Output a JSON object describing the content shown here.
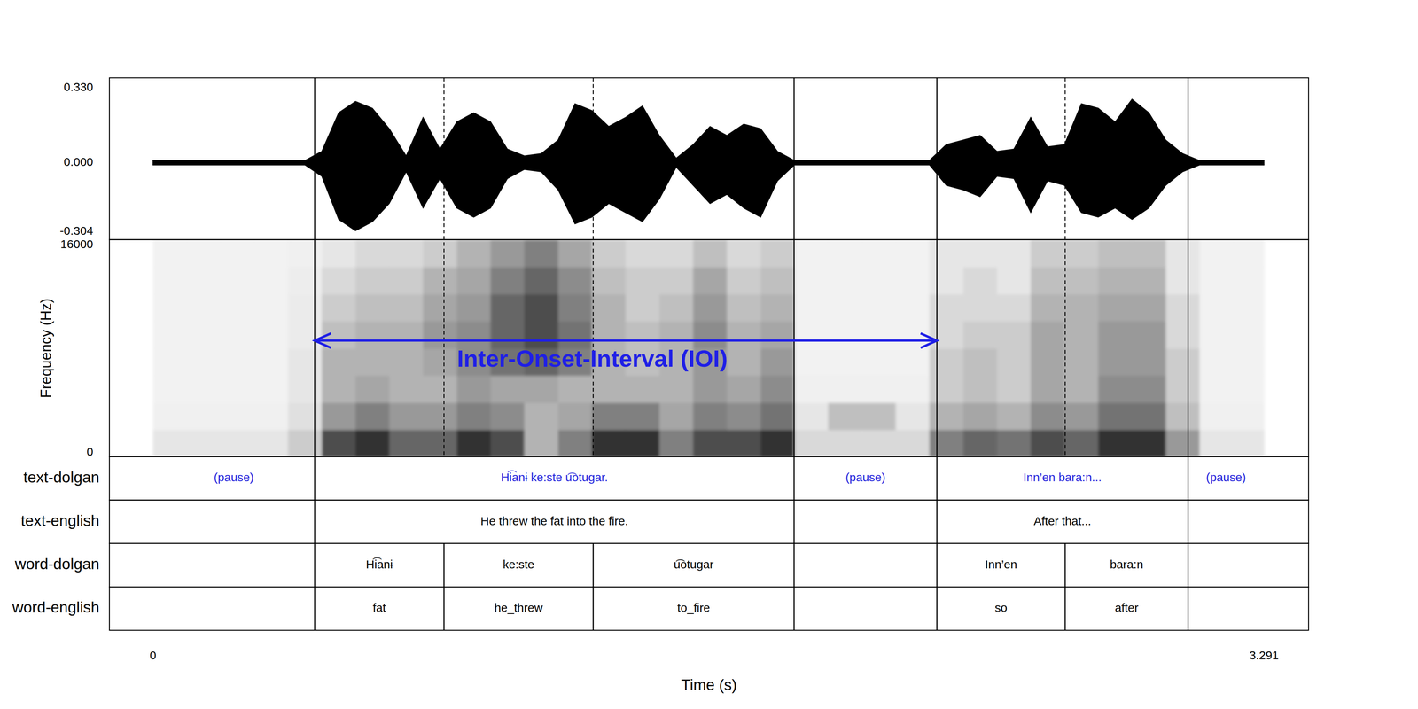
{
  "chart_data": {
    "type": "waveform_spectrogram",
    "x_label": "Time (s)",
    "xlim": [
      -0.129,
      3.423
    ],
    "xticks": [
      0,
      3.291
    ],
    "waveform": {
      "ylim": [
        -0.339,
        0.374
      ],
      "yticks": [
        {
          "value": 0.33,
          "label": "0.330"
        },
        {
          "value": 0,
          "label": "0.000"
        },
        -0.304
      ],
      "color": "#000000",
      "time": [
        0,
        0.05,
        0.1,
        0.15,
        0.2,
        0.25,
        0.3,
        0.35,
        0.4,
        0.45,
        0.5,
        0.55,
        0.6,
        0.65,
        0.7,
        0.75,
        0.8,
        0.85,
        0.9,
        0.95,
        1.0,
        1.05,
        1.1,
        1.15,
        1.2,
        1.25,
        1.3,
        1.35,
        1.4,
        1.45,
        1.5,
        1.55,
        1.6,
        1.65,
        1.7,
        1.75,
        1.8,
        1.85,
        1.9,
        1.95,
        2.0,
        2.05,
        2.1,
        2.15,
        2.2,
        2.25,
        2.3,
        2.35,
        2.4,
        2.45,
        2.5,
        2.55,
        2.6,
        2.65,
        2.7,
        2.75,
        2.8,
        2.85,
        2.9,
        2.95,
        3.0,
        3.05,
        3.1,
        3.15,
        3.2,
        3.25,
        3.291
      ],
      "upper": [
        0.01,
        0.01,
        0.01,
        0.01,
        0.01,
        0.01,
        0.01,
        0.01,
        0.01,
        0.01,
        0.05,
        0.22,
        0.27,
        0.24,
        0.15,
        0.03,
        0.2,
        0.06,
        0.18,
        0.22,
        0.18,
        0.06,
        0.03,
        0.04,
        0.1,
        0.26,
        0.23,
        0.16,
        0.2,
        0.25,
        0.12,
        0.02,
        0.08,
        0.16,
        0.12,
        0.17,
        0.15,
        0.05,
        0.01,
        0.01,
        0.01,
        0.01,
        0.01,
        0.01,
        0.01,
        0.01,
        0.01,
        0.08,
        0.1,
        0.12,
        0.05,
        0.06,
        0.2,
        0.07,
        0.08,
        0.26,
        0.24,
        0.18,
        0.28,
        0.22,
        0.1,
        0.04,
        0.01,
        0.01,
        0.01,
        0.01,
        0.01
      ],
      "lower": [
        -0.01,
        -0.01,
        -0.01,
        -0.01,
        -0.01,
        -0.01,
        -0.01,
        -0.01,
        -0.01,
        -0.01,
        -0.06,
        -0.25,
        -0.3,
        -0.26,
        -0.18,
        -0.04,
        -0.2,
        -0.07,
        -0.2,
        -0.24,
        -0.2,
        -0.07,
        -0.03,
        -0.04,
        -0.12,
        -0.27,
        -0.24,
        -0.18,
        -0.22,
        -0.26,
        -0.16,
        -0.02,
        -0.1,
        -0.18,
        -0.14,
        -0.2,
        -0.24,
        -0.08,
        -0.01,
        -0.01,
        -0.01,
        -0.01,
        -0.01,
        -0.01,
        -0.01,
        -0.01,
        -0.01,
        -0.1,
        -0.12,
        -0.15,
        -0.06,
        -0.07,
        -0.22,
        -0.08,
        -0.1,
        -0.22,
        -0.24,
        -0.2,
        -0.25,
        -0.2,
        -0.1,
        -0.04,
        -0.01,
        -0.01,
        -0.01,
        -0.01,
        -0.01
      ]
    },
    "spectrogram": {
      "y_label": "Frequency (Hz)",
      "ylim": [
        0,
        16000
      ],
      "yticks": [
        0,
        16000
      ],
      "time": [
        0,
        0.1,
        0.2,
        0.3,
        0.4,
        0.5,
        0.6,
        0.7,
        0.8,
        0.9,
        1.0,
        1.1,
        1.2,
        1.3,
        1.4,
        1.5,
        1.6,
        1.7,
        1.8,
        1.9,
        2.0,
        2.1,
        2.2,
        2.3,
        2.4,
        2.5,
        2.6,
        2.7,
        2.8,
        2.9,
        3.0,
        3.1,
        3.2,
        3.291
      ],
      "freq": [
        0,
        2000,
        4000,
        6000,
        8000,
        10000,
        12000,
        14000,
        16000
      ],
      "intensity": [
        [
          0.1,
          0.06,
          0.05,
          0.05,
          0.05,
          0.05,
          0.05,
          0.05
        ],
        [
          0.1,
          0.06,
          0.05,
          0.05,
          0.05,
          0.05,
          0.05,
          0.05
        ],
        [
          0.1,
          0.06,
          0.05,
          0.05,
          0.05,
          0.05,
          0.05,
          0.05
        ],
        [
          0.1,
          0.06,
          0.05,
          0.05,
          0.05,
          0.05,
          0.05,
          0.05
        ],
        [
          0.2,
          0.12,
          0.1,
          0.1,
          0.08,
          0.08,
          0.07,
          0.06
        ],
        [
          0.7,
          0.4,
          0.3,
          0.3,
          0.25,
          0.2,
          0.15,
          0.1
        ],
        [
          0.8,
          0.5,
          0.35,
          0.3,
          0.3,
          0.25,
          0.2,
          0.15
        ],
        [
          0.6,
          0.4,
          0.3,
          0.3,
          0.3,
          0.25,
          0.2,
          0.15
        ],
        [
          0.6,
          0.4,
          0.3,
          0.35,
          0.4,
          0.35,
          0.3,
          0.2
        ],
        [
          0.8,
          0.5,
          0.4,
          0.45,
          0.45,
          0.4,
          0.35,
          0.3
        ],
        [
          0.7,
          0.45,
          0.35,
          0.55,
          0.6,
          0.6,
          0.5,
          0.4
        ],
        [
          0.3,
          0.3,
          0.35,
          0.6,
          0.7,
          0.7,
          0.6,
          0.5
        ],
        [
          0.5,
          0.35,
          0.3,
          0.5,
          0.55,
          0.5,
          0.45,
          0.35
        ],
        [
          0.8,
          0.5,
          0.3,
          0.3,
          0.3,
          0.3,
          0.25,
          0.2
        ],
        [
          0.8,
          0.5,
          0.3,
          0.25,
          0.25,
          0.2,
          0.2,
          0.15
        ],
        [
          0.5,
          0.35,
          0.3,
          0.3,
          0.3,
          0.25,
          0.2,
          0.15
        ],
        [
          0.7,
          0.5,
          0.4,
          0.4,
          0.45,
          0.4,
          0.35,
          0.25
        ],
        [
          0.7,
          0.45,
          0.35,
          0.3,
          0.3,
          0.25,
          0.2,
          0.15
        ],
        [
          0.8,
          0.55,
          0.45,
          0.4,
          0.35,
          0.3,
          0.25,
          0.2
        ],
        [
          0.15,
          0.1,
          0.06,
          0.05,
          0.05,
          0.05,
          0.05,
          0.05
        ],
        [
          0.15,
          0.25,
          0.06,
          0.05,
          0.05,
          0.05,
          0.05,
          0.05
        ],
        [
          0.15,
          0.25,
          0.06,
          0.05,
          0.05,
          0.05,
          0.05,
          0.05
        ],
        [
          0.15,
          0.1,
          0.06,
          0.05,
          0.05,
          0.05,
          0.05,
          0.05
        ],
        [
          0.5,
          0.3,
          0.2,
          0.2,
          0.15,
          0.15,
          0.1,
          0.1
        ],
        [
          0.6,
          0.35,
          0.25,
          0.25,
          0.2,
          0.15,
          0.15,
          0.1
        ],
        [
          0.55,
          0.3,
          0.2,
          0.2,
          0.2,
          0.15,
          0.1,
          0.1
        ],
        [
          0.7,
          0.45,
          0.35,
          0.35,
          0.35,
          0.3,
          0.25,
          0.2
        ],
        [
          0.6,
          0.4,
          0.3,
          0.3,
          0.3,
          0.3,
          0.25,
          0.2
        ],
        [
          0.8,
          0.55,
          0.45,
          0.4,
          0.4,
          0.35,
          0.3,
          0.25
        ],
        [
          0.8,
          0.55,
          0.45,
          0.4,
          0.4,
          0.35,
          0.3,
          0.25
        ],
        [
          0.4,
          0.25,
          0.2,
          0.2,
          0.15,
          0.15,
          0.1,
          0.1
        ],
        [
          0.1,
          0.06,
          0.05,
          0.05,
          0.05,
          0.05,
          0.05,
          0.05
        ],
        [
          0.1,
          0.06,
          0.05,
          0.05,
          0.05,
          0.05,
          0.05,
          0.05
        ]
      ]
    },
    "tiers": [
      {
        "name": "text-dolgan",
        "color": "#2424dc",
        "intervals": [
          {
            "start": 0,
            "end": 0.479,
            "text": "(pause)"
          },
          {
            "start": 0.479,
            "end": 1.899,
            "text": "Hi͡anɨ ke:ste u͡otugar."
          },
          {
            "start": 1.899,
            "end": 2.322,
            "text": "(pause)"
          },
          {
            "start": 2.322,
            "end": 3.066,
            "text": "Inn’en bara:n..."
          },
          {
            "start": 3.066,
            "end": 3.291,
            "text": "(pause)"
          }
        ]
      },
      {
        "name": "text-english",
        "color": "#000000",
        "intervals": [
          {
            "start": 0.479,
            "end": 1.899,
            "text": "He threw the fat into the fire."
          },
          {
            "start": 2.322,
            "end": 3.066,
            "text": "After that..."
          }
        ]
      },
      {
        "name": "word-dolgan",
        "color": "#000000",
        "intervals": [
          {
            "start": 0.479,
            "end": 0.862,
            "text": "Hi͡anɨ"
          },
          {
            "start": 0.862,
            "end": 1.304,
            "text": "ke:ste"
          },
          {
            "start": 1.304,
            "end": 1.899,
            "text": "u͡otugar"
          },
          {
            "start": 2.322,
            "end": 2.702,
            "text": "Inn’en"
          },
          {
            "start": 2.702,
            "end": 3.066,
            "text": "bara:n"
          }
        ]
      },
      {
        "name": "word-english",
        "color": "#000000",
        "intervals": [
          {
            "start": 0.479,
            "end": 0.862,
            "text": "fat"
          },
          {
            "start": 0.862,
            "end": 1.304,
            "text": "he_threw"
          },
          {
            "start": 1.304,
            "end": 1.899,
            "text": "to_fire"
          },
          {
            "start": 2.322,
            "end": 2.702,
            "text": "so"
          },
          {
            "start": 2.702,
            "end": 3.066,
            "text": "after"
          }
        ]
      }
    ],
    "annotations": [
      {
        "text": "Inter-Onset-Interval (IOI)",
        "x": [
          0.479,
          2.322
        ],
        "y": 8560,
        "color": "#1f1fe6"
      }
    ]
  }
}
